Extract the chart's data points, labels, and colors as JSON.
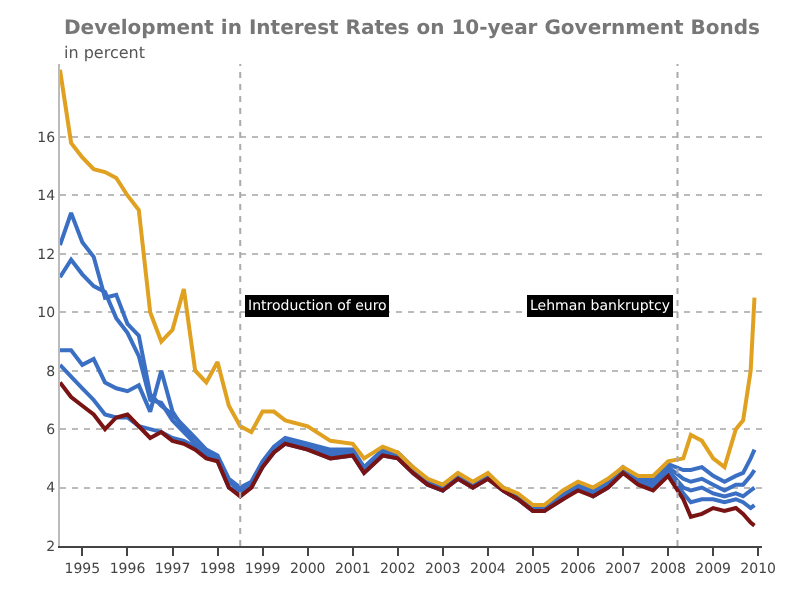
{
  "chart_data": {
    "type": "line",
    "title": "Development in Interest Rates on 10-year Government Bonds",
    "subtitle": "in percent",
    "x": [
      "1995-01",
      "1995-04",
      "1995-07",
      "1995-10",
      "1996-01",
      "1996-04",
      "1996-07",
      "1996-10",
      "1997-01",
      "1997-04",
      "1997-07",
      "1997-10",
      "1998-01",
      "1998-04",
      "1998-07",
      "1998-10",
      "1999-01",
      "1999-04",
      "1999-07",
      "1999-10",
      "2000-01",
      "2000-07",
      "2001-01",
      "2001-07",
      "2001-10",
      "2002-03",
      "2002-07",
      "2002-11",
      "2003-03",
      "2003-07",
      "2003-11",
      "2004-03",
      "2004-07",
      "2004-11",
      "2005-03",
      "2005-07",
      "2005-10",
      "2006-03",
      "2006-07",
      "2006-11",
      "2007-03",
      "2007-07",
      "2007-11",
      "2008-03",
      "2008-07",
      "2008-11",
      "2009-01",
      "2009-04",
      "2009-07",
      "2009-10",
      "2010-01",
      "2010-03",
      "2010-05",
      "2010-06"
    ],
    "series": [
      {
        "color": "#3a6fc4",
        "values": [
          8.2,
          7.8,
          7.4,
          7.0,
          6.5,
          6.4,
          6.4,
          6.1,
          6.0,
          5.9,
          5.7,
          5.6,
          5.4,
          5.1,
          4.9,
          4.0,
          3.8,
          4.0,
          4.7,
          5.2,
          5.5,
          5.3,
          5.0,
          5.1,
          4.5,
          5.1,
          5.0,
          4.5,
          4.1,
          3.9,
          4.3,
          4.0,
          4.3,
          3.9,
          3.6,
          3.2,
          3.2,
          3.6,
          4.0,
          3.7,
          4.0,
          4.5,
          4.2,
          4.0,
          4.6,
          3.8,
          3.5,
          3.6,
          3.6,
          3.5,
          3.6,
          3.5,
          3.3,
          3.4
        ]
      },
      {
        "color": "#3a6fc4",
        "values": [
          8.7,
          8.7,
          8.2,
          8.4,
          7.6,
          7.4,
          7.3,
          7.5,
          6.6,
          8.0,
          6.6,
          6.0,
          5.5,
          5.2,
          5.0,
          4.2,
          3.9,
          4.1,
          4.8,
          5.3,
          5.6,
          5.4,
          5.1,
          5.2,
          4.6,
          5.2,
          5.1,
          4.6,
          4.1,
          3.9,
          4.4,
          4.1,
          4.4,
          3.9,
          3.6,
          3.2,
          3.3,
          3.7,
          4.0,
          3.8,
          4.1,
          4.6,
          4.2,
          4.1,
          4.6,
          4.0,
          3.9,
          4.0,
          3.8,
          3.7,
          3.8,
          3.7,
          3.9,
          4.0
        ]
      },
      {
        "color": "#3a6fc4",
        "values": [
          11.2,
          11.8,
          11.3,
          10.9,
          10.7,
          9.8,
          9.3,
          8.5,
          7.0,
          6.9,
          6.3,
          5.9,
          5.5,
          5.2,
          5.0,
          4.2,
          3.9,
          4.1,
          4.8,
          5.3,
          5.6,
          5.4,
          5.2,
          5.2,
          4.6,
          5.2,
          5.1,
          4.6,
          4.1,
          3.9,
          4.4,
          4.1,
          4.4,
          3.9,
          3.6,
          3.3,
          3.2,
          3.7,
          4.0,
          3.8,
          4.1,
          4.6,
          4.3,
          4.2,
          4.7,
          4.3,
          4.2,
          4.3,
          4.1,
          3.9,
          4.1,
          4.1,
          4.4,
          4.6
        ]
      },
      {
        "color": "#3a6fc4",
        "values": [
          12.3,
          13.4,
          12.4,
          11.9,
          10.5,
          10.6,
          9.6,
          9.2,
          7.2,
          6.8,
          6.5,
          6.1,
          5.7,
          5.3,
          5.1,
          4.3,
          4.0,
          4.2,
          4.9,
          5.4,
          5.7,
          5.5,
          5.3,
          5.3,
          4.7,
          5.3,
          5.2,
          4.7,
          4.2,
          4.0,
          4.4,
          4.1,
          4.4,
          4.0,
          3.7,
          3.3,
          3.3,
          3.8,
          4.1,
          3.9,
          4.2,
          4.7,
          4.3,
          4.3,
          4.8,
          4.6,
          4.6,
          4.7,
          4.4,
          4.2,
          4.4,
          4.5,
          5.0,
          5.3
        ]
      },
      {
        "color": "#7a1414",
        "values": [
          7.6,
          7.1,
          6.8,
          6.5,
          6.0,
          6.4,
          6.5,
          6.1,
          5.7,
          5.9,
          5.6,
          5.5,
          5.3,
          5.0,
          4.9,
          4.0,
          3.7,
          4.0,
          4.7,
          5.2,
          5.5,
          5.3,
          5.0,
          5.1,
          4.5,
          5.1,
          5.0,
          4.5,
          4.1,
          3.9,
          4.3,
          4.0,
          4.3,
          3.9,
          3.6,
          3.2,
          3.2,
          3.6,
          3.9,
          3.7,
          4.0,
          4.5,
          4.1,
          3.9,
          4.4,
          3.6,
          3.0,
          3.1,
          3.3,
          3.2,
          3.3,
          3.1,
          2.8,
          2.7
        ]
      },
      {
        "color": "#e0a020",
        "values": [
          18.3,
          15.8,
          15.3,
          14.9,
          14.8,
          14.6,
          14.0,
          13.5,
          10.0,
          9.0,
          9.4,
          10.8,
          8.0,
          7.6,
          8.3,
          6.8,
          6.1,
          5.9,
          6.6,
          6.6,
          6.3,
          6.1,
          5.6,
          5.5,
          5.0,
          5.4,
          5.2,
          4.7,
          4.3,
          4.1,
          4.5,
          4.2,
          4.5,
          4.0,
          3.8,
          3.4,
          3.4,
          3.9,
          4.2,
          4.0,
          4.3,
          4.7,
          4.4,
          4.4,
          4.9,
          5.0,
          5.8,
          5.6,
          5.0,
          4.7,
          6.0,
          6.3,
          8.0,
          10.5
        ]
      }
    ],
    "xlim": [
      "1995-01-01",
      "2010-08-01"
    ],
    "xticks": [
      {
        "value": "1995-07-01",
        "label": "1995"
      },
      {
        "value": "1996-07-01",
        "label": "1996"
      },
      {
        "value": "1997-07-01",
        "label": "1997"
      },
      {
        "value": "1998-07-01",
        "label": "1998"
      },
      {
        "value": "1999-07-01",
        "label": "1999"
      },
      {
        "value": "2000-07-01",
        "label": "2000"
      },
      {
        "value": "2001-07-01",
        "label": "2001"
      },
      {
        "value": "2002-07-01",
        "label": "2002"
      },
      {
        "value": "2003-07-01",
        "label": "2003"
      },
      {
        "value": "2004-07-01",
        "label": "2004"
      },
      {
        "value": "2005-07-01",
        "label": "2005"
      },
      {
        "value": "2006-07-01",
        "label": "2006"
      },
      {
        "value": "2007-07-01",
        "label": "2007"
      },
      {
        "value": "2008-07-01",
        "label": "2008"
      },
      {
        "value": "2009-07-01",
        "label": "2009"
      },
      {
        "value": "2010-07-01",
        "label": "2010"
      }
    ],
    "ylim": [
      2,
      18.5
    ],
    "yticks": [
      2,
      4,
      6,
      8,
      10,
      12,
      14,
      16
    ],
    "ref_lines": [
      {
        "axis": "x",
        "value": "1999-01-01",
        "label": "Introduction of euro",
        "color": "#aaaaaa",
        "line_style": "dotted"
      },
      {
        "axis": "x",
        "value": "2008-09-15",
        "label": "Lehman bankruptcy",
        "color": "#aaaaaa",
        "line_style": "dotted"
      }
    ],
    "grid": "y",
    "marker": "none",
    "line_style": "solid"
  }
}
